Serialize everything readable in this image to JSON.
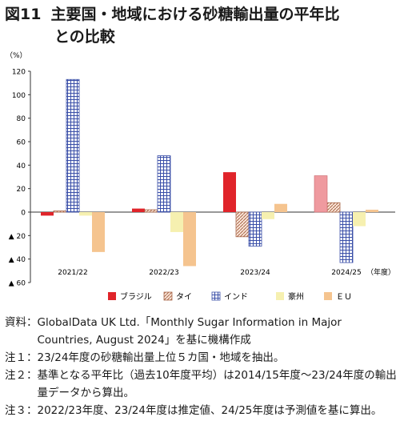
{
  "figure": {
    "label": "図11",
    "title_line1": "主要国・地域における砂糖輸出量の平年比",
    "title_line2": "との比較"
  },
  "chart_data": {
    "type": "bar",
    "unit_label": "（%）",
    "categories": [
      "2021/22",
      "2022/23",
      "2023/24",
      "2024/25"
    ],
    "x_suffix": "（年度）",
    "ylim": [
      -60,
      120
    ],
    "yticks": [
      120,
      100,
      80,
      60,
      40,
      20,
      0,
      -20,
      -40,
      -60
    ],
    "ytick_labels": [
      "120",
      "100",
      "80",
      "60",
      "40",
      "20",
      "0",
      "▲ 20",
      "▲ 40",
      "▲ 60"
    ],
    "grid": false,
    "legend_position": "bottom",
    "series": [
      {
        "name": "ブラジル",
        "color": "#e0242a",
        "pattern": "solid",
        "values": [
          -3,
          3,
          34,
          null
        ]
      },
      {
        "name": "タイ",
        "color": "#c98a6a",
        "pattern": "diag",
        "values": [
          1,
          2,
          -21,
          8
        ]
      },
      {
        "name": "インド",
        "color": "#4a62b8",
        "pattern": "grid",
        "values": [
          113,
          48,
          -29,
          -43
        ]
      },
      {
        "name": "豪州",
        "color": "#f6f0b0",
        "pattern": "solid",
        "values": [
          -3,
          -17,
          -6,
          -12
        ]
      },
      {
        "name": "ＥＵ",
        "color": "#f5c48f",
        "pattern": "solid",
        "values": [
          -34,
          -46,
          7,
          2
        ]
      }
    ],
    "extra_bars": [
      {
        "category_index": 3,
        "series_index": 0,
        "value": 31,
        "color": "#ef9a9f"
      }
    ]
  },
  "notes": [
    {
      "label": "資料：",
      "text": "GlobalData UK Ltd.「Monthly Sugar Information in Major Countries, August 2024」を基に機構作成"
    },
    {
      "label": "注１：",
      "text": "23/24年度の砂糖輸出量上位５カ国・地域を抽出。"
    },
    {
      "label": "注２：",
      "text": "基準となる平年比（過去10年度平均）は2014/15年度～23/24年度の輸出量データから算出。"
    },
    {
      "label": "注３：",
      "text": "2022/23年度、23/24年度は推定値、24/25年度は予測値を基に算出。"
    }
  ]
}
